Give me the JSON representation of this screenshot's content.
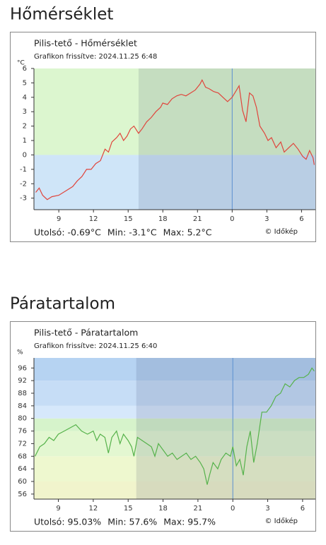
{
  "chart_data": [
    {
      "type": "line",
      "heading": "Hőmérséklet",
      "title": "Pilis-tető - Hőmérséklet",
      "subtitle": "Grafikon frissítve: 2024.11.25 6:48",
      "y_label": "°C",
      "stats": [
        "Utolsó: -0.69°C",
        "Min: -3.1°C",
        "Max: 5.2°C"
      ],
      "copyright": "© Időkép",
      "xlim": [
        6.85,
        31.2
      ],
      "xticks": [
        9,
        12,
        15,
        18,
        21,
        {
          "value": 24,
          "label": "0"
        },
        {
          "value": 27,
          "label": "3"
        },
        {
          "value": 30,
          "label": "6"
        }
      ],
      "ylim": [
        -3.8,
        6
      ],
      "yticks": [
        -3,
        -2,
        -1,
        0,
        1,
        2,
        3,
        4,
        5,
        6
      ],
      "night_start": 15.9,
      "marker_x": 24,
      "zones": [
        {
          "from": -3.8,
          "to": 0,
          "color": "#cfe5f8"
        },
        {
          "from": 0,
          "to": 6,
          "color": "#dcf6cf"
        }
      ],
      "series": [
        {
          "color": "#e0453c",
          "x": [
            7.0,
            7.3,
            7.6,
            8.0,
            8.4,
            9.0,
            9.6,
            10.2,
            10.6,
            11.0,
            11.4,
            11.8,
            12.2,
            12.6,
            13.0,
            13.3,
            13.6,
            14.0,
            14.3,
            14.6,
            14.9,
            15.2,
            15.5,
            15.9,
            16.2,
            16.6,
            17.0,
            17.4,
            17.8,
            18.0,
            18.4,
            18.8,
            19.2,
            19.6,
            20.0,
            20.4,
            20.8,
            21.2,
            21.4,
            21.7,
            22.0,
            22.4,
            22.8,
            23.2,
            23.6,
            24.0,
            24.3,
            24.6,
            24.9,
            25.2,
            25.5,
            25.8,
            26.1,
            26.4,
            26.8,
            27.1,
            27.4,
            27.8,
            28.2,
            28.5,
            28.9,
            29.3,
            29.7,
            30.1,
            30.4,
            30.7,
            31.0,
            31.1
          ],
          "values": [
            -2.6,
            -2.3,
            -2.8,
            -3.1,
            -2.9,
            -2.8,
            -2.5,
            -2.2,
            -1.8,
            -1.5,
            -1.0,
            -1.0,
            -0.6,
            -0.4,
            0.4,
            0.2,
            0.9,
            1.2,
            1.5,
            1.0,
            1.3,
            1.8,
            2.0,
            1.5,
            1.8,
            2.3,
            2.6,
            3.0,
            3.3,
            3.6,
            3.5,
            3.9,
            4.1,
            4.2,
            4.1,
            4.3,
            4.5,
            4.9,
            5.2,
            4.7,
            4.6,
            4.4,
            4.3,
            4.0,
            3.7,
            4.0,
            4.4,
            4.8,
            3.1,
            2.3,
            4.3,
            4.1,
            3.3,
            2.0,
            1.5,
            1.0,
            1.2,
            0.5,
            0.9,
            0.2,
            0.5,
            0.8,
            0.4,
            -0.1,
            -0.3,
            0.3,
            -0.2,
            -0.69
          ]
        }
      ]
    },
    {
      "type": "line",
      "heading": "Páratartalom",
      "title": "Pilis-tető - Páratartalom",
      "subtitle": "Grafikon frissítve: 2024.11.25 6:40",
      "y_label": "%",
      "stats": [
        "Utolsó: 95.03%",
        "Min: 57.6%",
        "Max: 95.7%"
      ],
      "copyright": "© Időkép",
      "xlim": [
        6.9,
        31.1
      ],
      "xticks": [
        9,
        12,
        15,
        18,
        21,
        {
          "value": 24,
          "label": "0"
        },
        {
          "value": 27,
          "label": "3"
        },
        {
          "value": 30,
          "label": "6"
        }
      ],
      "ylim": [
        54.4,
        99.2
      ],
      "yticks": [
        56,
        60,
        64,
        68,
        72,
        76,
        80,
        84,
        88,
        92,
        96
      ],
      "night_start": 15.7,
      "marker_x": 24,
      "zones": [
        {
          "from": 54.4,
          "to": 60,
          "color": "#f1f4cc"
        },
        {
          "from": 60,
          "to": 68,
          "color": "#eef8cf"
        },
        {
          "from": 68,
          "to": 76,
          "color": "#e3f7d1"
        },
        {
          "from": 76,
          "to": 80,
          "color": "#d6f3cb"
        },
        {
          "from": 80,
          "to": 84,
          "color": "#d6e8fb"
        },
        {
          "from": 84,
          "to": 92,
          "color": "#c6ddf6"
        },
        {
          "from": 92,
          "to": 99.2,
          "color": "#b6d3f2"
        }
      ],
      "series": [
        {
          "color": "#56b24b",
          "x": [
            7.0,
            7.4,
            7.8,
            8.2,
            8.6,
            9.0,
            9.5,
            10.0,
            10.5,
            11.0,
            11.5,
            12.0,
            12.3,
            12.6,
            13.0,
            13.3,
            13.6,
            14.0,
            14.3,
            14.6,
            15.0,
            15.3,
            15.5,
            15.8,
            16.2,
            16.6,
            17.0,
            17.3,
            17.6,
            18.0,
            18.4,
            18.8,
            19.2,
            19.6,
            20.0,
            20.4,
            20.8,
            21.2,
            21.5,
            21.8,
            22.0,
            22.3,
            22.7,
            23.0,
            23.4,
            23.8,
            24.0,
            24.3,
            24.6,
            24.9,
            25.2,
            25.5,
            25.8,
            26.1,
            26.5,
            26.9,
            27.3,
            27.7,
            28.1,
            28.5,
            28.9,
            29.3,
            29.7,
            30.1,
            30.5,
            30.8,
            31.0
          ],
          "values": [
            68,
            71,
            72,
            74,
            73,
            75,
            76,
            77,
            78,
            76,
            75,
            76,
            73,
            75,
            74,
            69,
            74,
            76,
            72,
            75,
            73,
            71,
            68,
            74,
            73,
            72,
            71,
            68,
            72,
            70,
            68,
            69,
            67,
            68,
            69,
            67,
            68,
            66,
            64,
            59,
            62,
            66,
            64,
            67,
            69,
            68,
            71,
            65,
            67,
            62,
            71,
            76,
            66,
            72,
            82,
            82,
            84,
            87,
            88,
            91,
            90,
            92,
            93,
            93,
            94,
            96,
            95.03
          ]
        }
      ]
    }
  ]
}
